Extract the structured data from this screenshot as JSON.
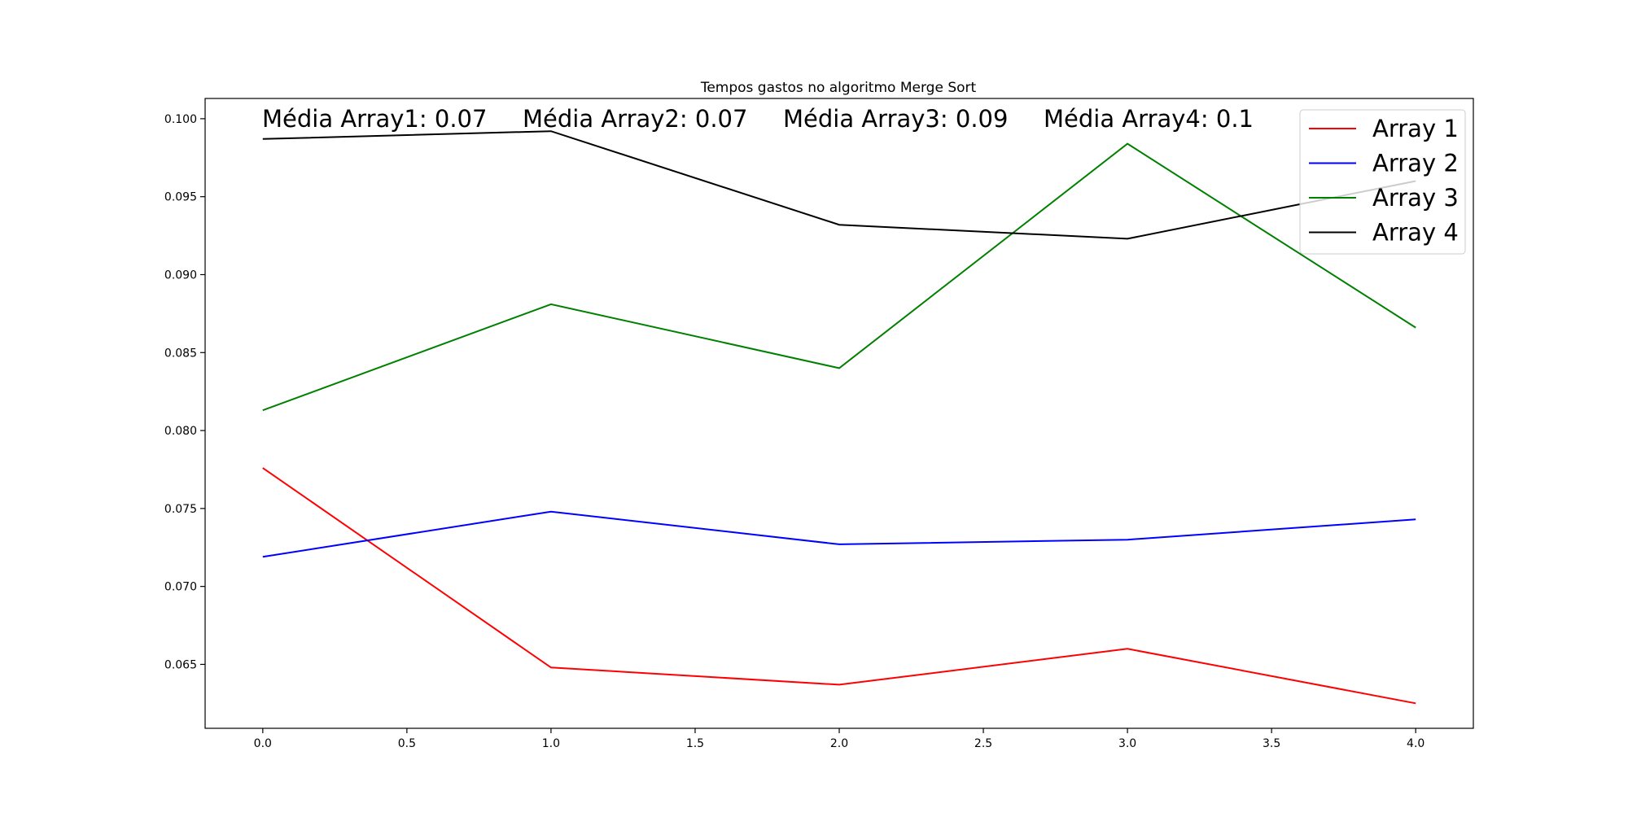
{
  "chart_data": {
    "type": "line",
    "title": "Tempos gastos no algoritmo Merge Sort",
    "xlabel": "",
    "ylabel": "",
    "x": [
      0,
      1,
      2,
      3,
      4
    ],
    "xlim": [
      -0.2,
      4.2
    ],
    "ylim": [
      0.0609,
      0.1013
    ],
    "xticks": [
      0.0,
      0.5,
      1.0,
      1.5,
      2.0,
      2.5,
      3.0,
      3.5,
      4.0
    ],
    "xtick_labels": [
      "0.0",
      "0.5",
      "1.0",
      "1.5",
      "2.0",
      "2.5",
      "3.0",
      "3.5",
      "4.0"
    ],
    "yticks": [
      0.065,
      0.07,
      0.075,
      0.08,
      0.085,
      0.09,
      0.095,
      0.1
    ],
    "ytick_labels": [
      "0.065",
      "0.070",
      "0.075",
      "0.080",
      "0.085",
      "0.090",
      "0.095",
      "0.100"
    ],
    "grid": false,
    "legend_position": "top-right",
    "series": [
      {
        "name": "Array 1",
        "color": "#ff0000",
        "values": [
          0.0776,
          0.0648,
          0.0637,
          0.066,
          0.0625
        ]
      },
      {
        "name": "Array 2",
        "color": "#0000ff",
        "values": [
          0.0719,
          0.0748,
          0.0727,
          0.073,
          0.0743
        ]
      },
      {
        "name": "Array 3",
        "color": "#008000",
        "values": [
          0.0813,
          0.0881,
          0.084,
          0.0984,
          0.0866
        ]
      },
      {
        "name": "Array 4",
        "color": "#000000",
        "values": [
          0.0987,
          0.0992,
          0.0932,
          0.0923,
          0.096
        ]
      }
    ],
    "annotations": [
      "Média Array1: 0.07",
      "Média Array2: 0.07",
      "Média Array3: 0.09",
      "Média Array4: 0.1"
    ]
  }
}
